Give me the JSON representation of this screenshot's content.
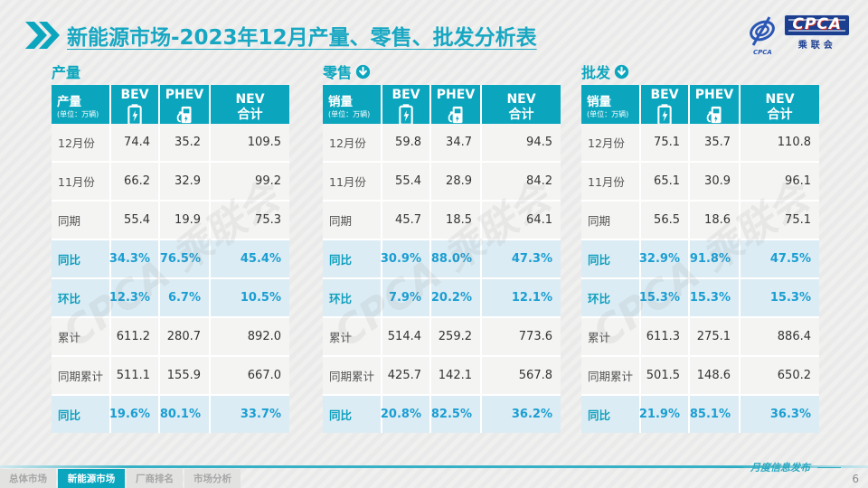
{
  "title": {
    "main": "新能源市场",
    "rest": "-2023年12月产量、零售、批发分析表"
  },
  "logo": {
    "badge": "CPCA",
    "sub": "乘联会",
    "small": "CPCA"
  },
  "watermark": "CPCA 乘联会",
  "columns": {
    "bev": "BEV",
    "phev": "PHEV",
    "nev1": "NEV",
    "nev2": "合计"
  },
  "tables": [
    {
      "section": "产量",
      "header_label": "产量",
      "header_note": "(单位：万辆)",
      "rows": [
        {
          "label": "12月份",
          "type": "normal",
          "values": [
            "74.4",
            "35.2",
            "109.5"
          ]
        },
        {
          "label": "11月份",
          "type": "normal",
          "values": [
            "66.2",
            "32.9",
            "99.2"
          ]
        },
        {
          "label": "同期",
          "type": "normal",
          "values": [
            "55.4",
            "19.9",
            "75.3"
          ]
        },
        {
          "label": "同比",
          "type": "highlight",
          "values": [
            "34.3%",
            "76.5%",
            "45.4%"
          ]
        },
        {
          "label": "环比",
          "type": "highlight",
          "values": [
            "12.3%",
            "6.7%",
            "10.5%"
          ]
        },
        {
          "label": "累计",
          "type": "normal",
          "values": [
            "611.2",
            "280.7",
            "892.0"
          ]
        },
        {
          "label": "同期累计",
          "type": "normal",
          "values": [
            "511.1",
            "155.9",
            "667.0"
          ]
        },
        {
          "label": "同比",
          "type": "highlight",
          "values": [
            "19.6%",
            "80.1%",
            "33.7%"
          ]
        }
      ]
    },
    {
      "section": "零售",
      "header_label": "销量",
      "header_note": "(单位：万辆)",
      "rows": [
        {
          "label": "12月份",
          "type": "normal",
          "values": [
            "59.8",
            "34.7",
            "94.5"
          ]
        },
        {
          "label": "11月份",
          "type": "normal",
          "values": [
            "55.4",
            "28.9",
            "84.2"
          ]
        },
        {
          "label": "同期",
          "type": "normal",
          "values": [
            "45.7",
            "18.5",
            "64.1"
          ]
        },
        {
          "label": "同比",
          "type": "highlight",
          "values": [
            "30.9%",
            "88.0%",
            "47.3%"
          ]
        },
        {
          "label": "环比",
          "type": "highlight",
          "values": [
            "7.9%",
            "20.2%",
            "12.1%"
          ]
        },
        {
          "label": "累计",
          "type": "normal",
          "values": [
            "514.4",
            "259.2",
            "773.6"
          ]
        },
        {
          "label": "同期累计",
          "type": "normal",
          "values": [
            "425.7",
            "142.1",
            "567.8"
          ]
        },
        {
          "label": "同比",
          "type": "highlight",
          "values": [
            "20.8%",
            "82.5%",
            "36.2%"
          ]
        }
      ]
    },
    {
      "section": "批发",
      "header_label": "销量",
      "header_note": "(单位：万辆)",
      "rows": [
        {
          "label": "12月份",
          "type": "normal",
          "values": [
            "75.1",
            "35.7",
            "110.8"
          ]
        },
        {
          "label": "11月份",
          "type": "normal",
          "values": [
            "65.1",
            "30.9",
            "96.1"
          ]
        },
        {
          "label": "同期",
          "type": "normal",
          "values": [
            "56.5",
            "18.6",
            "75.1"
          ]
        },
        {
          "label": "同比",
          "type": "highlight",
          "values": [
            "32.9%",
            "91.8%",
            "47.5%"
          ]
        },
        {
          "label": "环比",
          "type": "highlight",
          "values": [
            "15.3%",
            "15.3%",
            "15.3%"
          ]
        },
        {
          "label": "累计",
          "type": "normal",
          "values": [
            "611.3",
            "275.1",
            "886.4"
          ]
        },
        {
          "label": "同期累计",
          "type": "normal",
          "values": [
            "501.5",
            "148.6",
            "650.2"
          ]
        },
        {
          "label": "同比",
          "type": "highlight",
          "values": [
            "21.9%",
            "85.1%",
            "36.3%"
          ]
        }
      ]
    }
  ],
  "footer": {
    "tabs": [
      {
        "label": "总体市场"
      },
      {
        "label": "新能源市场"
      },
      {
        "label": "厂商排名"
      },
      {
        "label": "市场分析"
      }
    ],
    "note": "月度信息发布",
    "page": "6"
  }
}
